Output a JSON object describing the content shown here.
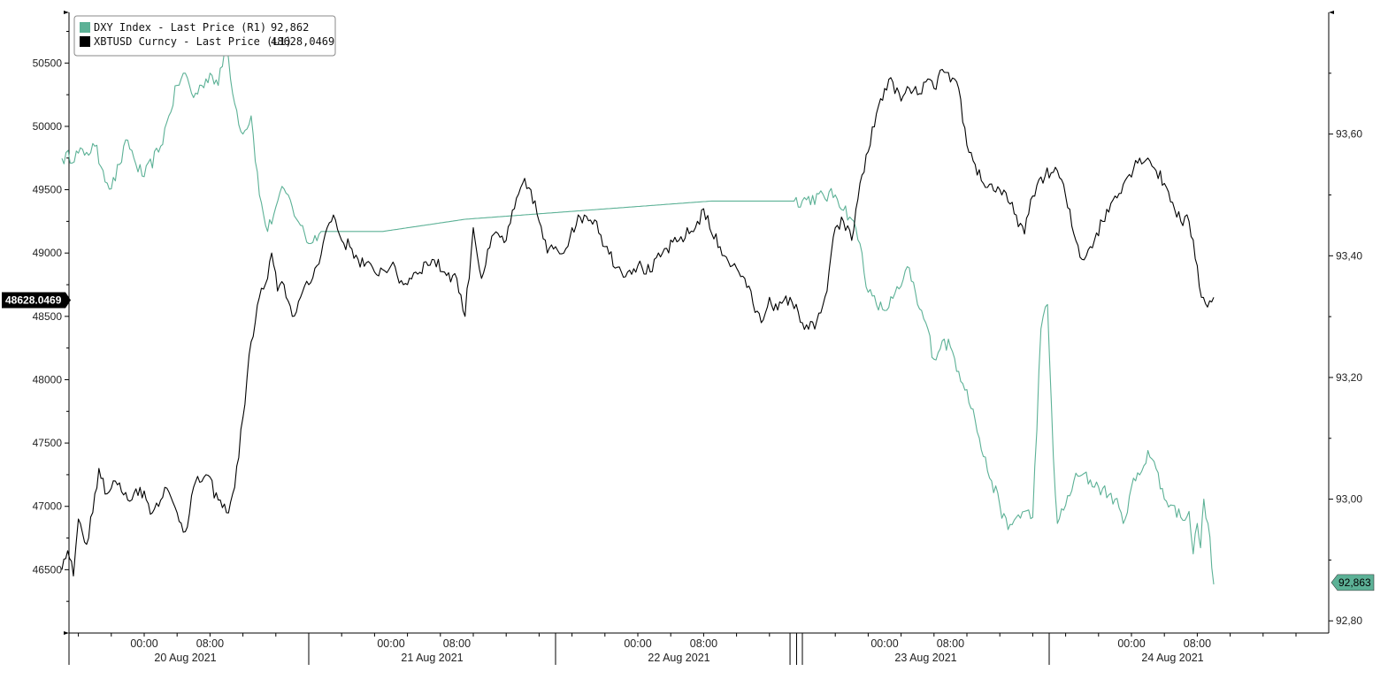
{
  "chart_data": {
    "type": "line",
    "colors": {
      "dxy": "#5cb196",
      "xbt": "#000000"
    },
    "legend": {
      "placement": "top-left",
      "items": [
        {
          "name": "DXY Index - Last Price (R1)",
          "value": "92,862",
          "color": "#5cb196"
        },
        {
          "name": "XBTUSD Curncy - Last Price (L1)",
          "value": "48628,0469",
          "color": "#000000"
        }
      ]
    },
    "left_axis": {
      "range": [
        46000,
        50900
      ],
      "ticks": [
        46500,
        47000,
        47500,
        48000,
        48500,
        49000,
        49500,
        50000,
        50500
      ],
      "tick_labels": [
        "46500",
        "47000",
        "47500",
        "48000",
        "48500",
        "49000",
        "49500",
        "50000",
        "50500"
      ],
      "last_value_label": "48628.0469",
      "last_value": 48628.0469
    },
    "right_axis": {
      "range": [
        92.78,
        93.8
      ],
      "ticks": [
        92.8,
        93.0,
        93.2,
        93.4,
        93.6
      ],
      "tick_labels": [
        "92,80",
        "93,00",
        "93,20",
        "93,40",
        "93,60"
      ],
      "last_value_label": "92,863",
      "last_value": 92.863
    },
    "x_axis": {
      "range_hours": [
        -10,
        142
      ],
      "time_labels": [
        {
          "h": 0,
          "label": "00:00"
        },
        {
          "h": 8,
          "label": "08:00"
        },
        {
          "h": 30,
          "label": "00:00"
        },
        {
          "h": 38,
          "label": "08:00"
        },
        {
          "h": 60,
          "label": "00:00"
        },
        {
          "h": 68,
          "label": "08:00"
        },
        {
          "h": 90,
          "label": "00:00"
        },
        {
          "h": 98,
          "label": "08:00"
        },
        {
          "h": 120,
          "label": "00:00"
        },
        {
          "h": 128,
          "label": "08:00"
        }
      ],
      "day_labels": [
        {
          "h": 5,
          "label": "20 Aug 2021"
        },
        {
          "h": 35,
          "label": "21 Aug 2021"
        },
        {
          "h": 65,
          "label": "22 Aug 2021"
        },
        {
          "h": 95,
          "label": "23 Aug 2021"
        },
        {
          "h": 125,
          "label": "24 Aug 2021"
        }
      ]
    },
    "series": [
      {
        "name": "XBTUSD Curncy - Last Price (L1)",
        "axis": "left",
        "color": "#000000",
        "noise": 55,
        "points": [
          [
            -10,
            46500
          ],
          [
            -9.3,
            46650
          ],
          [
            -8.6,
            46450
          ],
          [
            -8,
            46900
          ],
          [
            -7,
            46700
          ],
          [
            -6,
            47100
          ],
          [
            -5.5,
            47300
          ],
          [
            -4.5,
            47100
          ],
          [
            -3.5,
            47200
          ],
          [
            -2,
            47050
          ],
          [
            -0.5,
            47150
          ],
          [
            1,
            46950
          ],
          [
            2.5,
            47150
          ],
          [
            4,
            46950
          ],
          [
            5,
            46800
          ],
          [
            6,
            47150
          ],
          [
            7.5,
            47250
          ],
          [
            9,
            47050
          ],
          [
            10,
            46950
          ],
          [
            11,
            47150
          ],
          [
            12,
            47700
          ],
          [
            13,
            48300
          ],
          [
            14,
            48650
          ],
          [
            15,
            48800
          ],
          [
            15.5,
            49000
          ],
          [
            16.2,
            48700
          ],
          [
            17,
            48750
          ],
          [
            18,
            48500
          ],
          [
            19,
            48650
          ],
          [
            20,
            48750
          ],
          [
            21,
            48900
          ],
          [
            22,
            49150
          ],
          [
            23,
            49300
          ],
          [
            24,
            49100
          ],
          [
            25,
            49050
          ],
          [
            26,
            48950
          ],
          [
            28,
            48850
          ],
          [
            30,
            48900
          ],
          [
            31.5,
            48750
          ],
          [
            33,
            48850
          ],
          [
            35,
            48950
          ],
          [
            36.5,
            48850
          ],
          [
            38,
            48800
          ],
          [
            39,
            48500
          ],
          [
            40,
            49200
          ],
          [
            41,
            48800
          ],
          [
            42.5,
            49150
          ],
          [
            44,
            49100
          ],
          [
            45,
            49350
          ],
          [
            46,
            49550
          ],
          [
            47,
            49500
          ],
          [
            48,
            49250
          ],
          [
            49,
            49000
          ],
          [
            50,
            49050
          ],
          [
            51,
            49000
          ],
          [
            52,
            49200
          ],
          [
            53.5,
            49300
          ],
          [
            55,
            49250
          ],
          [
            56,
            49050
          ],
          [
            58,
            48850
          ],
          [
            60,
            48900
          ],
          [
            61.5,
            48850
          ],
          [
            63,
            49000
          ],
          [
            65,
            49100
          ],
          [
            67,
            49200
          ],
          [
            68,
            49350
          ],
          [
            69,
            49150
          ],
          [
            70,
            49050
          ],
          [
            71.5,
            48900
          ],
          [
            73,
            48800
          ],
          [
            74,
            48600
          ],
          [
            75,
            48450
          ],
          [
            76,
            48650
          ],
          [
            77,
            48550
          ],
          [
            78.5,
            48650
          ],
          [
            80,
            48450
          ],
          [
            81.5,
            48400
          ],
          [
            83,
            48700
          ],
          [
            84,
            49200
          ],
          [
            85,
            49250
          ],
          [
            86,
            49100
          ],
          [
            87,
            49550
          ],
          [
            88,
            49800
          ],
          [
            89,
            50100
          ],
          [
            90,
            50300
          ],
          [
            91,
            50350
          ],
          [
            92,
            50200
          ],
          [
            93,
            50300
          ],
          [
            94,
            50250
          ],
          [
            95,
            50350
          ],
          [
            96,
            50300
          ],
          [
            97,
            50450
          ],
          [
            98,
            50350
          ],
          [
            99,
            50300
          ],
          [
            100,
            49850
          ],
          [
            101,
            49700
          ],
          [
            102,
            49550
          ],
          [
            104,
            49500
          ],
          [
            106,
            49300
          ],
          [
            107,
            49150
          ],
          [
            108,
            49450
          ],
          [
            109,
            49600
          ],
          [
            111,
            49650
          ],
          [
            112,
            49450
          ],
          [
            113,
            49150
          ],
          [
            114,
            48950
          ],
          [
            115,
            49050
          ],
          [
            116.5,
            49250
          ],
          [
            118,
            49450
          ],
          [
            119.5,
            49600
          ],
          [
            121,
            49750
          ],
          [
            122,
            49750
          ],
          [
            123,
            49650
          ],
          [
            124,
            49550
          ],
          [
            125,
            49400
          ],
          [
            126,
            49250
          ],
          [
            127,
            49250
          ],
          [
            128,
            48900
          ],
          [
            128.5,
            48650
          ],
          [
            129,
            48600
          ],
          [
            130,
            48650
          ]
        ]
      },
      {
        "name": "DXY Index - Last Price (R1)",
        "axis": "right",
        "color": "#5cb196",
        "noise": 0.012,
        "points": [
          [
            -10,
            93.56
          ],
          [
            -7,
            93.57
          ],
          [
            -6,
            93.58
          ],
          [
            -5,
            93.54
          ],
          [
            -4,
            93.51
          ],
          [
            -3,
            93.55
          ],
          [
            -2,
            93.59
          ],
          [
            -1,
            93.55
          ],
          [
            0,
            93.53
          ],
          [
            2,
            93.58
          ],
          [
            3,
            93.63
          ],
          [
            4,
            93.68
          ],
          [
            5,
            93.7
          ],
          [
            6,
            93.66
          ],
          [
            7,
            93.68
          ],
          [
            8,
            93.7
          ],
          [
            9,
            93.68
          ],
          [
            10,
            93.75
          ],
          [
            11,
            93.65
          ],
          [
            12,
            93.6
          ],
          [
            13,
            93.63
          ],
          [
            14,
            93.5
          ],
          [
            15,
            93.44
          ],
          [
            16,
            93.48
          ],
          [
            17,
            93.51
          ],
          [
            18,
            93.48
          ],
          [
            19,
            93.45
          ],
          [
            20,
            93.42
          ],
          [
            21.5,
            93.44
          ],
          [
            29,
            93.44
          ],
          [
            39,
            93.46
          ],
          [
            49,
            93.47
          ],
          [
            59,
            93.48
          ],
          [
            69,
            93.49
          ],
          [
            79,
            93.49
          ],
          [
            84,
            93.5
          ],
          [
            86,
            93.46
          ],
          [
            87,
            93.42
          ],
          [
            88,
            93.34
          ],
          [
            89,
            93.32
          ],
          [
            90,
            93.31
          ],
          [
            91,
            93.33
          ],
          [
            92,
            93.35
          ],
          [
            93,
            93.38
          ],
          [
            94,
            93.32
          ],
          [
            95,
            93.29
          ],
          [
            96,
            93.23
          ],
          [
            97,
            93.26
          ],
          [
            98,
            93.25
          ],
          [
            99,
            93.21
          ],
          [
            100,
            93.18
          ],
          [
            101,
            93.13
          ],
          [
            102,
            93.07
          ],
          [
            103,
            93.03
          ],
          [
            104,
            92.99
          ],
          [
            105,
            92.95
          ],
          [
            106,
            92.97
          ],
          [
            107,
            92.98
          ],
          [
            108,
            92.97
          ],
          [
            109,
            93.28
          ],
          [
            109.8,
            93.32
          ],
          [
            110.5,
            93.07
          ],
          [
            111,
            92.96
          ],
          [
            112,
            92.99
          ],
          [
            113,
            93.03
          ],
          [
            114,
            93.04
          ],
          [
            116,
            93.02
          ],
          [
            118,
            93.0
          ],
          [
            119,
            92.96
          ],
          [
            120,
            93.02
          ],
          [
            121,
            93.04
          ],
          [
            122,
            93.08
          ],
          [
            123,
            93.05
          ],
          [
            124,
            93.0
          ],
          [
            125,
            92.99
          ],
          [
            126,
            92.97
          ],
          [
            127,
            92.98
          ],
          [
            127.5,
            92.91
          ],
          [
            128,
            92.96
          ],
          [
            128.4,
            92.92
          ],
          [
            128.8,
            93.0
          ],
          [
            129.3,
            92.96
          ],
          [
            130,
            92.86
          ]
        ]
      }
    ]
  }
}
